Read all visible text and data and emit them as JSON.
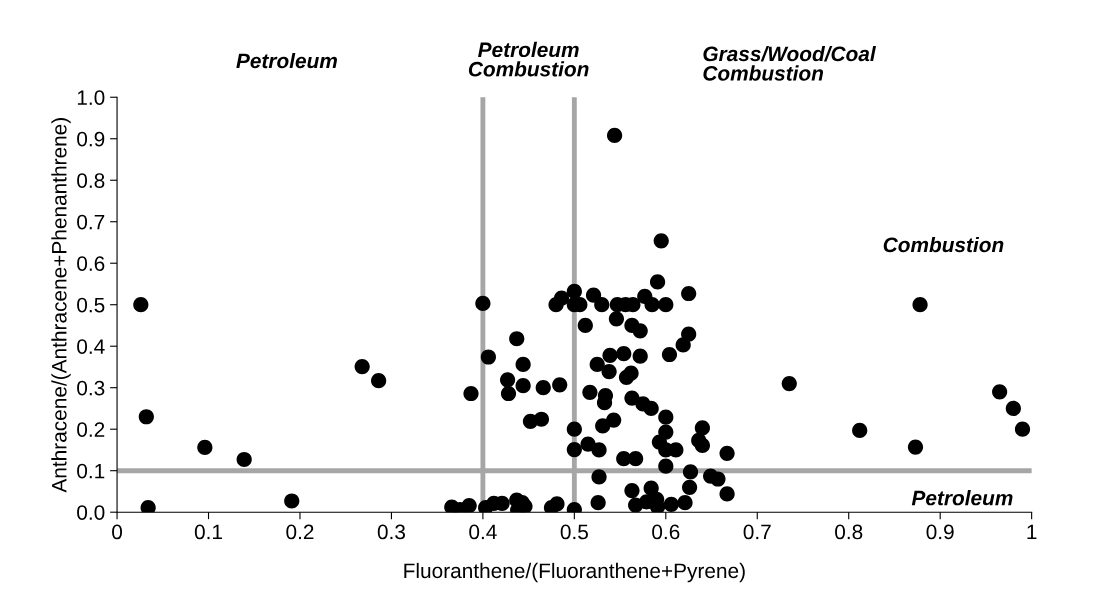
{
  "chart_data": {
    "type": "scatter",
    "xlabel": "Fluoranthene/(Fluoranthene+Pyrene)",
    "ylabel": "Anthracene/(Anthracene+Phenanthrene)",
    "annotations": [
      "Petroleum",
      "Petroleum\nCombustion",
      "Grass/Wood/Coal\nCombustion",
      "Combustion",
      "Petroleum"
    ],
    "series": [
      {
        "color": "#000000",
        "x": [
          0.026,
          0.032,
          0.034,
          0.096,
          0.139,
          0.191,
          0.268,
          0.286,
          0.387,
          0.4,
          0.406,
          0.437,
          0.444,
          0.427,
          0.428,
          0.444,
          0.466,
          0.484,
          0.452,
          0.464,
          0.5,
          0.5,
          0.366,
          0.375,
          0.385,
          0.403,
          0.412,
          0.421,
          0.437,
          0.443,
          0.438,
          0.446,
          0.475,
          0.481,
          0.5,
          0.544,
          0.595,
          0.591,
          0.625,
          0.5,
          0.48,
          0.486,
          0.5,
          0.506,
          0.521,
          0.53,
          0.547,
          0.556,
          0.564,
          0.577,
          0.585,
          0.6,
          0.512,
          0.546,
          0.563,
          0.572,
          0.625,
          0.619,
          0.539,
          0.554,
          0.572,
          0.604,
          0.525,
          0.538,
          0.557,
          0.562,
          0.517,
          0.534,
          0.533,
          0.563,
          0.575,
          0.584,
          0.6,
          0.531,
          0.543,
          0.515,
          0.527,
          0.6,
          0.593,
          0.6,
          0.611,
          0.64,
          0.636,
          0.64,
          0.667,
          0.554,
          0.567,
          0.6,
          0.627,
          0.527,
          0.649,
          0.657,
          0.563,
          0.584,
          0.626,
          0.667,
          0.526,
          0.567,
          0.579,
          0.59,
          0.591,
          0.606,
          0.621,
          0.735,
          0.812,
          0.873,
          0.878,
          0.965,
          0.98,
          0.99
        ],
        "values": [
          0.5,
          0.23,
          0.011,
          0.156,
          0.127,
          0.027,
          0.351,
          0.317,
          0.286,
          0.503,
          0.374,
          0.418,
          0.356,
          0.319,
          0.286,
          0.305,
          0.3,
          0.307,
          0.219,
          0.224,
          0.2,
          0.151,
          0.012,
          0.006,
          0.016,
          0.011,
          0.021,
          0.021,
          0.029,
          0.023,
          0.005,
          0.014,
          0.011,
          0.02,
          0.006,
          0.908,
          0.654,
          0.555,
          0.527,
          0.532,
          0.5,
          0.516,
          0.5,
          0.5,
          0.523,
          0.5,
          0.5,
          0.5,
          0.5,
          0.52,
          0.5,
          0.5,
          0.45,
          0.466,
          0.45,
          0.437,
          0.429,
          0.403,
          0.378,
          0.382,
          0.376,
          0.38,
          0.356,
          0.339,
          0.325,
          0.335,
          0.289,
          0.281,
          0.264,
          0.275,
          0.261,
          0.25,
          0.229,
          0.208,
          0.222,
          0.164,
          0.15,
          0.193,
          0.169,
          0.15,
          0.15,
          0.203,
          0.173,
          0.161,
          0.142,
          0.129,
          0.129,
          0.111,
          0.097,
          0.085,
          0.087,
          0.08,
          0.052,
          0.058,
          0.06,
          0.044,
          0.023,
          0.017,
          0.025,
          0.031,
          0.013,
          0.019,
          0.023,
          0.31,
          0.197,
          0.157,
          0.5,
          0.29,
          0.25,
          0.2
        ]
      }
    ],
    "ref_lines": [
      {
        "axis": "x",
        "value": 0.4,
        "color": "#a6a6a6"
      },
      {
        "axis": "x",
        "value": 0.5,
        "color": "#a6a6a6"
      },
      {
        "axis": "y",
        "value": 0.1,
        "color": "#a6a6a6"
      }
    ],
    "xlim": [
      0,
      1
    ],
    "ylim": [
      0,
      1
    ],
    "xticks": [
      0,
      0.1,
      0.2,
      0.3,
      0.4,
      0.5,
      0.6,
      0.7,
      0.8,
      0.9,
      1
    ],
    "yticks": [
      {
        "value": 0,
        "label": "0.0"
      },
      {
        "value": 0.1,
        "label": "0.1"
      },
      {
        "value": 0.2,
        "label": "0.2"
      },
      {
        "value": 0.3,
        "label": "0.3"
      },
      {
        "value": 0.4,
        "label": "0.4"
      },
      {
        "value": 0.5,
        "label": "0.5"
      },
      {
        "value": 0.6,
        "label": "0.6"
      },
      {
        "value": 0.7,
        "label": "0.7"
      },
      {
        "value": 0.8,
        "label": "0.8"
      },
      {
        "value": 0.9,
        "label": "0.9"
      },
      {
        "value": 1,
        "label": "1.0"
      }
    ],
    "grid": false,
    "marker": "circle"
  }
}
